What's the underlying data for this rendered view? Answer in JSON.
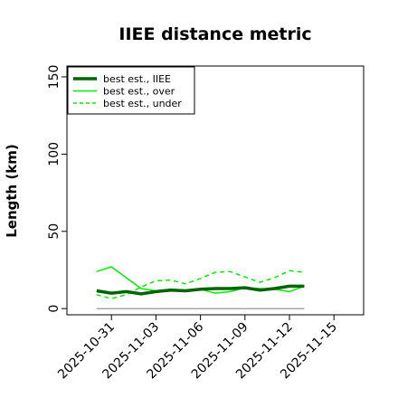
{
  "chart_data": {
    "type": "line",
    "title": "IIEE distance metric",
    "xlabel": "",
    "ylabel": "Length (km)",
    "x_range": [
      "2025-10-28",
      "2025-11-17"
    ],
    "ylim": [
      -4,
      157
    ],
    "x_ticks": [
      "2025-10-31",
      "2025-11-03",
      "2025-11-06",
      "2025-11-09",
      "2025-11-12",
      "2025-11-15"
    ],
    "y_ticks": [
      0,
      50,
      100,
      150
    ],
    "grid": false,
    "legend": {
      "placement": "top-left",
      "entries": [
        "best est., IIEE",
        "best est., over",
        "best est., under"
      ]
    },
    "series": [
      {
        "name": "best est., IIEE",
        "color": "#006400",
        "style": "solid-thick",
        "x": [
          "2025-10-30",
          "2025-10-31",
          "2025-11-01",
          "2025-11-02",
          "2025-11-03",
          "2025-11-04",
          "2025-11-05",
          "2025-11-06",
          "2025-11-07",
          "2025-11-08",
          "2025-11-09",
          "2025-11-10",
          "2025-11-11",
          "2025-11-12",
          "2025-11-13"
        ],
        "values": [
          11.5,
          10,
          11,
          9.5,
          11,
          12,
          11.5,
          12.5,
          13,
          13,
          13.5,
          12,
          13,
          14.5,
          14.5
        ]
      },
      {
        "name": "best est., over",
        "color": "#00ee00",
        "style": "solid",
        "x": [
          "2025-10-30",
          "2025-10-31",
          "2025-11-01",
          "2025-11-02",
          "2025-11-03",
          "2025-11-04",
          "2025-11-05",
          "2025-11-06",
          "2025-11-07",
          "2025-11-08",
          "2025-11-09",
          "2025-11-10",
          "2025-11-11",
          "2025-11-12",
          "2025-11-13"
        ],
        "values": [
          24,
          27,
          20,
          13,
          11.5,
          12.5,
          12,
          12.5,
          10,
          11,
          13.5,
          13,
          12.5,
          11,
          14.5
        ]
      },
      {
        "name": "best est., under",
        "color": "#00ee00",
        "style": "dashed",
        "x": [
          "2025-10-30",
          "2025-10-31",
          "2025-11-01",
          "2025-11-02",
          "2025-11-03",
          "2025-11-04",
          "2025-11-05",
          "2025-11-06",
          "2025-11-07",
          "2025-11-08",
          "2025-11-09",
          "2025-11-10",
          "2025-11-11",
          "2025-11-12",
          "2025-11-13"
        ],
        "values": [
          9,
          6.5,
          9,
          14,
          18,
          18.5,
          16,
          19.5,
          23.5,
          24,
          20.5,
          17,
          20,
          24.5,
          23.5
        ]
      },
      {
        "name": "",
        "color": "#888888",
        "style": "thin",
        "x": [
          "2025-10-30",
          "2025-11-13"
        ],
        "values": [
          0,
          0
        ]
      }
    ]
  }
}
